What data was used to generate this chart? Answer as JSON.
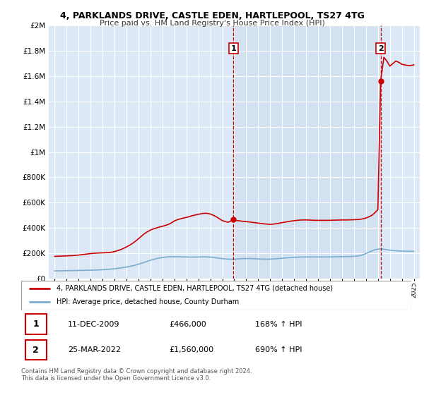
{
  "title": "4, PARKLANDS DRIVE, CASTLE EDEN, HARTLEPOOL, TS27 4TG",
  "subtitle": "Price paid vs. HM Land Registry's House Price Index (HPI)",
  "legend_line1": "4, PARKLANDS DRIVE, CASTLE EDEN, HARTLEPOOL, TS27 4TG (detached house)",
  "legend_line2": "HPI: Average price, detached house, County Durham",
  "footnote": "Contains HM Land Registry data © Crown copyright and database right 2024.\nThis data is licensed under the Open Government Licence v3.0.",
  "transaction1_date": "11-DEC-2009",
  "transaction1_price": 466000,
  "transaction1_hpi": "168% ↑ HPI",
  "transaction1_x": 2009.94,
  "transaction2_date": "25-MAR-2022",
  "transaction2_price": 1560000,
  "transaction2_hpi": "690% ↑ HPI",
  "transaction2_x": 2022.23,
  "red_line_color": "#cc0000",
  "blue_line_color": "#7aadcf",
  "background_color_left": "#dce8f5",
  "background_color_right": "#dce8f5",
  "shade_color": "#c8dff0",
  "grid_color": "#ffffff",
  "ylim": [
    0,
    2000000
  ],
  "xlim": [
    1994.5,
    2025.5
  ],
  "red_line_x": [
    1995.0,
    1995.25,
    1995.5,
    1995.75,
    1996.0,
    1996.25,
    1996.5,
    1996.75,
    1997.0,
    1997.25,
    1997.5,
    1997.75,
    1998.0,
    1998.25,
    1998.5,
    1998.75,
    1999.0,
    1999.25,
    1999.5,
    1999.75,
    2000.0,
    2000.25,
    2000.5,
    2000.75,
    2001.0,
    2001.25,
    2001.5,
    2001.75,
    2002.0,
    2002.25,
    2002.5,
    2002.75,
    2003.0,
    2003.25,
    2003.5,
    2003.75,
    2004.0,
    2004.25,
    2004.5,
    2004.75,
    2005.0,
    2005.25,
    2005.5,
    2005.75,
    2006.0,
    2006.25,
    2006.5,
    2006.75,
    2007.0,
    2007.25,
    2007.5,
    2007.75,
    2008.0,
    2008.25,
    2008.5,
    2008.75,
    2009.0,
    2009.25,
    2009.5,
    2009.94,
    2010.0,
    2010.25,
    2010.5,
    2010.75,
    2011.0,
    2011.25,
    2011.5,
    2011.75,
    2012.0,
    2012.25,
    2012.5,
    2012.75,
    2013.0,
    2013.25,
    2013.5,
    2013.75,
    2014.0,
    2014.25,
    2014.5,
    2014.75,
    2015.0,
    2015.25,
    2015.5,
    2015.75,
    2016.0,
    2016.25,
    2016.5,
    2016.75,
    2017.0,
    2017.25,
    2017.5,
    2017.75,
    2018.0,
    2018.25,
    2018.5,
    2018.75,
    2019.0,
    2019.25,
    2019.5,
    2019.75,
    2020.0,
    2020.25,
    2020.5,
    2020.75,
    2021.0,
    2021.25,
    2021.5,
    2021.75,
    2022.0,
    2022.23,
    2022.5,
    2022.75,
    2023.0,
    2023.25,
    2023.5,
    2023.75,
    2024.0,
    2024.25,
    2024.5,
    2024.75,
    2025.0
  ],
  "red_line_y": [
    175000,
    176000,
    177000,
    178000,
    179000,
    180000,
    181000,
    183000,
    185000,
    188000,
    191000,
    194000,
    197000,
    199000,
    201000,
    202000,
    203000,
    204000,
    205000,
    208000,
    213000,
    220000,
    228000,
    238000,
    250000,
    263000,
    278000,
    295000,
    315000,
    335000,
    355000,
    370000,
    383000,
    393000,
    400000,
    407000,
    413000,
    420000,
    428000,
    440000,
    455000,
    465000,
    472000,
    478000,
    483000,
    490000,
    497000,
    502000,
    508000,
    512000,
    516000,
    515000,
    510000,
    500000,
    488000,
    473000,
    458000,
    450000,
    445000,
    466000,
    462000,
    458000,
    455000,
    452000,
    450000,
    447000,
    444000,
    441000,
    438000,
    435000,
    432000,
    430000,
    428000,
    430000,
    433000,
    437000,
    442000,
    446000,
    450000,
    454000,
    457000,
    460000,
    462000,
    463000,
    463000,
    462000,
    461000,
    460000,
    460000,
    460000,
    460000,
    460000,
    460000,
    461000,
    462000,
    462000,
    463000,
    463000,
    463000,
    464000,
    465000,
    466000,
    468000,
    472000,
    478000,
    488000,
    500000,
    520000,
    545000,
    1560000,
    1750000,
    1720000,
    1680000,
    1700000,
    1720000,
    1710000,
    1695000,
    1690000,
    1685000,
    1685000,
    1690000
  ],
  "blue_line_x": [
    1995.0,
    1995.25,
    1995.5,
    1995.75,
    1996.0,
    1996.25,
    1996.5,
    1996.75,
    1997.0,
    1997.25,
    1997.5,
    1997.75,
    1998.0,
    1998.25,
    1998.5,
    1998.75,
    1999.0,
    1999.25,
    1999.5,
    1999.75,
    2000.0,
    2000.25,
    2000.5,
    2000.75,
    2001.0,
    2001.25,
    2001.5,
    2001.75,
    2002.0,
    2002.25,
    2002.5,
    2002.75,
    2003.0,
    2003.25,
    2003.5,
    2003.75,
    2004.0,
    2004.25,
    2004.5,
    2004.75,
    2005.0,
    2005.25,
    2005.5,
    2005.75,
    2006.0,
    2006.25,
    2006.5,
    2006.75,
    2007.0,
    2007.25,
    2007.5,
    2007.75,
    2008.0,
    2008.25,
    2008.5,
    2008.75,
    2009.0,
    2009.25,
    2009.5,
    2009.75,
    2010.0,
    2010.25,
    2010.5,
    2010.75,
    2011.0,
    2011.25,
    2011.5,
    2011.75,
    2012.0,
    2012.25,
    2012.5,
    2012.75,
    2013.0,
    2013.25,
    2013.5,
    2013.75,
    2014.0,
    2014.25,
    2014.5,
    2014.75,
    2015.0,
    2015.25,
    2015.5,
    2015.75,
    2016.0,
    2016.25,
    2016.5,
    2016.75,
    2017.0,
    2017.25,
    2017.5,
    2017.75,
    2018.0,
    2018.25,
    2018.5,
    2018.75,
    2019.0,
    2019.25,
    2019.5,
    2019.75,
    2020.0,
    2020.25,
    2020.5,
    2020.75,
    2021.0,
    2021.25,
    2021.5,
    2021.75,
    2022.0,
    2022.25,
    2022.5,
    2022.75,
    2023.0,
    2023.25,
    2023.5,
    2023.75,
    2024.0,
    2024.25,
    2024.5,
    2024.75,
    2025.0
  ],
  "blue_line_y": [
    60000,
    60000,
    60500,
    61000,
    61500,
    62000,
    62500,
    63000,
    63500,
    64000,
    64500,
    65000,
    65500,
    66000,
    67000,
    68000,
    69500,
    71000,
    73000,
    75000,
    77000,
    80000,
    83500,
    87000,
    91000,
    95000,
    100000,
    106000,
    113000,
    120000,
    128000,
    136000,
    144000,
    151000,
    157000,
    162000,
    166000,
    169000,
    171000,
    172000,
    172000,
    172000,
    171000,
    170000,
    170000,
    169000,
    169000,
    169000,
    170000,
    170500,
    171000,
    170000,
    169000,
    167000,
    164000,
    160000,
    157000,
    155000,
    153000,
    152000,
    153000,
    154000,
    156000,
    157000,
    157500,
    157500,
    157000,
    156000,
    155000,
    154000,
    153000,
    153000,
    153500,
    154500,
    156000,
    158000,
    160000,
    162000,
    164000,
    166000,
    167000,
    168000,
    169000,
    170000,
    170000,
    170000,
    170000,
    170000,
    170000,
    170000,
    170000,
    170000,
    170500,
    171000,
    171500,
    172000,
    172500,
    173000,
    173500,
    174000,
    175000,
    177000,
    181000,
    188000,
    197000,
    208000,
    218000,
    227000,
    232000,
    234000,
    232000,
    228000,
    224000,
    222000,
    220000,
    218000,
    217000,
    216000,
    215000,
    215000,
    215000
  ]
}
